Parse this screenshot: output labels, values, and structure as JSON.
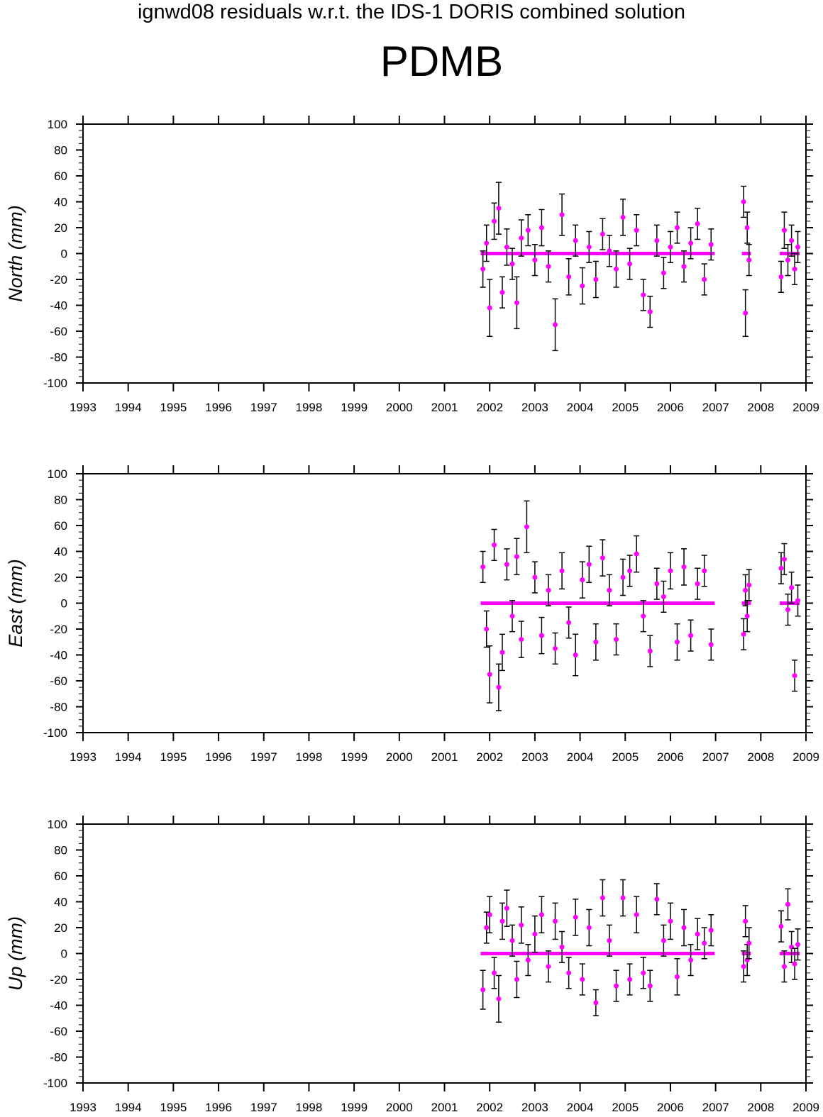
{
  "title": "ignwd08 residuals w.r.t. the IDS-1 DORIS combined solution",
  "station": "PDMB",
  "colors": {
    "point": "#ff00ff",
    "errorbar": "#000000",
    "axis": "#000000"
  },
  "chart_data": [
    {
      "type": "scatter",
      "panel": "north",
      "ylabel": "North (mm)",
      "xlim": [
        1993,
        2009
      ],
      "ylim": [
        -100,
        100
      ],
      "xticks": [
        1993,
        1994,
        1995,
        1996,
        1997,
        1998,
        1999,
        2000,
        2001,
        2002,
        2003,
        2004,
        2005,
        2006,
        2007,
        2008,
        2009
      ],
      "yticks": [
        100,
        80,
        60,
        40,
        20,
        0,
        -20,
        -40,
        -60,
        -80,
        -100
      ],
      "grid": false,
      "error_bars": true,
      "x": [
        2001.85,
        2001.93,
        2002.0,
        2002.1,
        2002.2,
        2002.28,
        2002.38,
        2002.5,
        2002.6,
        2002.7,
        2002.85,
        2003.0,
        2003.15,
        2003.3,
        2003.45,
        2003.6,
        2003.75,
        2003.9,
        2004.05,
        2004.2,
        2004.35,
        2004.5,
        2004.65,
        2004.8,
        2004.95,
        2005.1,
        2005.25,
        2005.4,
        2005.55,
        2005.7,
        2005.85,
        2006.0,
        2006.15,
        2006.3,
        2006.45,
        2006.6,
        2006.75,
        2006.9,
        2007.62,
        2007.66,
        2007.7,
        2007.74,
        2008.45,
        2008.52,
        2008.6,
        2008.68,
        2008.75,
        2008.82
      ],
      "y": [
        -12,
        8,
        -42,
        25,
        35,
        -30,
        5,
        -8,
        -38,
        12,
        18,
        -5,
        20,
        -10,
        -55,
        30,
        -18,
        10,
        -25,
        5,
        -20,
        15,
        2,
        -12,
        28,
        -8,
        18,
        -32,
        -45,
        10,
        -15,
        5,
        20,
        -10,
        8,
        23,
        -20,
        7,
        40,
        -46,
        20,
        -5,
        -18,
        18,
        -5,
        10,
        -12,
        5
      ],
      "err": [
        14,
        14,
        22,
        14,
        20,
        12,
        14,
        12,
        20,
        14,
        12,
        12,
        14,
        12,
        20,
        16,
        14,
        12,
        14,
        12,
        14,
        12,
        12,
        14,
        14,
        12,
        12,
        12,
        12,
        12,
        12,
        12,
        12,
        12,
        12,
        12,
        12,
        12,
        12,
        18,
        12,
        12,
        12,
        14,
        12,
        12,
        12,
        12
      ]
    },
    {
      "type": "scatter",
      "panel": "east",
      "ylabel": "East (mm)",
      "xlim": [
        1993,
        2009
      ],
      "ylim": [
        -100,
        100
      ],
      "xticks": [
        1993,
        1994,
        1995,
        1996,
        1997,
        1998,
        1999,
        2000,
        2001,
        2002,
        2003,
        2004,
        2005,
        2006,
        2007,
        2008,
        2009
      ],
      "yticks": [
        100,
        80,
        60,
        40,
        20,
        0,
        -20,
        -40,
        -60,
        -80,
        -100
      ],
      "grid": false,
      "error_bars": true,
      "x": [
        2001.85,
        2001.93,
        2002.0,
        2002.1,
        2002.2,
        2002.28,
        2002.38,
        2002.5,
        2002.6,
        2002.7,
        2002.82,
        2003.0,
        2003.15,
        2003.3,
        2003.45,
        2003.6,
        2003.75,
        2003.9,
        2004.05,
        2004.2,
        2004.35,
        2004.5,
        2004.65,
        2004.8,
        2004.95,
        2005.1,
        2005.25,
        2005.4,
        2005.55,
        2005.7,
        2005.85,
        2006.0,
        2006.15,
        2006.3,
        2006.45,
        2006.6,
        2006.75,
        2006.9,
        2007.62,
        2007.66,
        2007.7,
        2007.74,
        2008.45,
        2008.52,
        2008.6,
        2008.68,
        2008.75,
        2008.82
      ],
      "y": [
        28,
        -20,
        -55,
        45,
        -65,
        -38,
        30,
        -10,
        36,
        -28,
        59,
        20,
        -25,
        10,
        -35,
        25,
        -15,
        -40,
        18,
        30,
        -30,
        35,
        10,
        -28,
        20,
        25,
        38,
        -10,
        -37,
        15,
        5,
        25,
        -30,
        28,
        -25,
        15,
        25,
        -32,
        -24,
        10,
        -10,
        14,
        27,
        34,
        -5,
        12,
        -56,
        2
      ],
      "err": [
        12,
        14,
        22,
        12,
        18,
        14,
        12,
        12,
        14,
        14,
        20,
        12,
        14,
        12,
        12,
        14,
        12,
        16,
        14,
        14,
        14,
        14,
        12,
        12,
        14,
        12,
        14,
        12,
        12,
        12,
        12,
        14,
        14,
        14,
        12,
        12,
        12,
        12,
        12,
        12,
        12,
        12,
        12,
        12,
        12,
        12,
        12,
        12
      ]
    },
    {
      "type": "scatter",
      "panel": "up",
      "ylabel": "Up (mm)",
      "xlim": [
        1993,
        2009
      ],
      "ylim": [
        -100,
        100
      ],
      "xticks": [
        1993,
        1994,
        1995,
        1996,
        1997,
        1998,
        1999,
        2000,
        2001,
        2002,
        2003,
        2004,
        2005,
        2006,
        2007,
        2008,
        2009
      ],
      "yticks": [
        100,
        80,
        60,
        40,
        20,
        0,
        -20,
        -40,
        -60,
        -80,
        -100
      ],
      "grid": false,
      "error_bars": true,
      "x": [
        2001.85,
        2001.93,
        2002.0,
        2002.1,
        2002.2,
        2002.28,
        2002.38,
        2002.5,
        2002.6,
        2002.7,
        2002.85,
        2003.0,
        2003.15,
        2003.3,
        2003.45,
        2003.6,
        2003.75,
        2003.9,
        2004.05,
        2004.2,
        2004.35,
        2004.5,
        2004.65,
        2004.8,
        2004.95,
        2005.1,
        2005.25,
        2005.4,
        2005.55,
        2005.7,
        2005.85,
        2006.0,
        2006.15,
        2006.3,
        2006.45,
        2006.6,
        2006.75,
        2006.9,
        2007.62,
        2007.66,
        2007.7,
        2007.74,
        2008.45,
        2008.52,
        2008.6,
        2008.68,
        2008.75,
        2008.82
      ],
      "y": [
        -28,
        20,
        30,
        -15,
        -35,
        25,
        35,
        10,
        -20,
        22,
        -5,
        15,
        30,
        -10,
        25,
        5,
        -15,
        28,
        -20,
        20,
        -38,
        43,
        10,
        -25,
        43,
        -20,
        30,
        -15,
        -25,
        42,
        10,
        25,
        -18,
        20,
        -5,
        15,
        8,
        18,
        -10,
        25,
        -5,
        8,
        21,
        -10,
        38,
        5,
        -8,
        7
      ],
      "err": [
        15,
        12,
        14,
        12,
        18,
        14,
        14,
        12,
        14,
        14,
        12,
        14,
        14,
        12,
        14,
        12,
        12,
        14,
        12,
        14,
        10,
        14,
        12,
        12,
        14,
        12,
        14,
        12,
        12,
        12,
        12,
        14,
        14,
        14,
        12,
        12,
        12,
        12,
        12,
        12,
        12,
        12,
        12,
        12,
        12,
        12,
        12,
        12
      ]
    }
  ]
}
